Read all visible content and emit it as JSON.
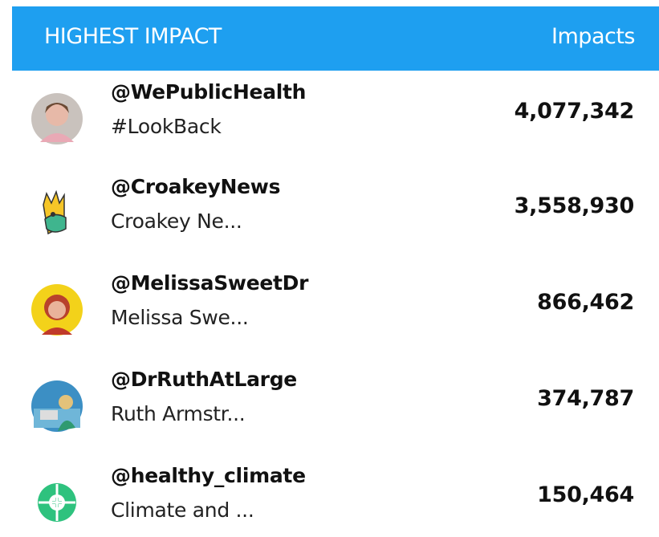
{
  "header": {
    "title": "HIGHEST IMPACT",
    "column": "Impacts"
  },
  "rows": [
    {
      "handle": "@WePublicHealth",
      "name": "#LookBack",
      "impacts": "4,077,342"
    },
    {
      "handle": "@CroakeyNews",
      "name": "Croakey Ne...",
      "impacts": "3,558,930"
    },
    {
      "handle": "@MelissaSweetDr",
      "name": "Melissa Swe...",
      "impacts": "866,462"
    },
    {
      "handle": "@DrRuthAtLarge",
      "name": "Ruth Armstr...",
      "impacts": "374,787"
    },
    {
      "handle": "@healthy_climate",
      "name": "Climate and ...",
      "impacts": "150,464"
    }
  ]
}
